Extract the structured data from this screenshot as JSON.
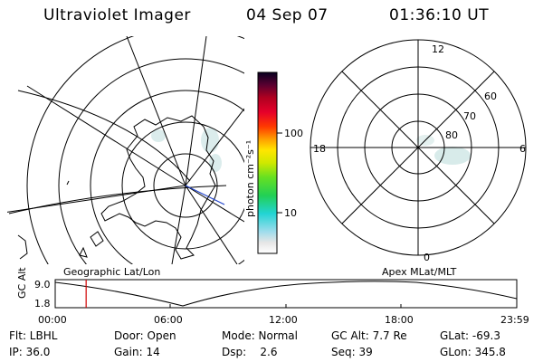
{
  "header": {
    "instrument": "Ultraviolet Imager",
    "date": "04 Sep 07",
    "time": "01:36:10 UT"
  },
  "colorbar": {
    "unit_label": "photon cm⁻²s⁻¹",
    "ticks": [
      "100",
      "10"
    ]
  },
  "polar_plot": {
    "mlt_labels": {
      "top": "12",
      "left": "18",
      "right": "6",
      "bottom": "0"
    },
    "lat_labels": [
      "60",
      "70",
      "80"
    ]
  },
  "map_labels": {
    "left": "Geographic Lat/Lon",
    "right": "Apex MLat/MLT"
  },
  "altitude_plot": {
    "ylabel": "GC Alt",
    "yticks": [
      "9.0",
      "1.8"
    ],
    "xticks": [
      "00:00",
      "06:00",
      "12:00",
      "18:00",
      "23:59"
    ],
    "current_time_fraction": 0.067
  },
  "info": {
    "flt": "Flt: LBHL",
    "ip": "IP: 36.0",
    "door": "Door: Open",
    "gain": "Gain: 14",
    "mode": "Mode: Normal",
    "dsp": "Dsp:    2.6",
    "gc_alt": "GC Alt: 7.7 Re",
    "seq": "Seq: 39",
    "glat": "GLat: -69.3",
    "glon": "GLon: 345.8"
  },
  "colors": {
    "marker": "#d00000",
    "aurora": "#cfe3e3",
    "blue_line": "#2244cc"
  }
}
